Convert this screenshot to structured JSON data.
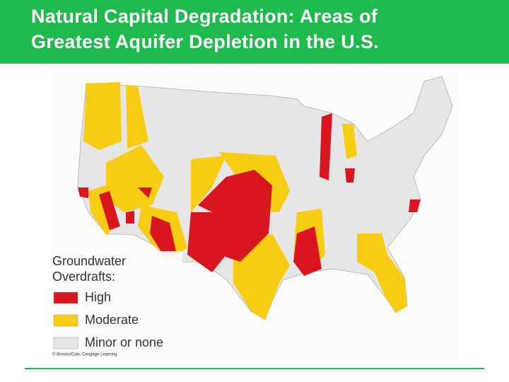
{
  "title_lines": [
    "Natural Capital Degradation: Areas of",
    "Greatest Aquifer Depletion in the U.S."
  ],
  "legend": {
    "title_lines": [
      "Groundwater",
      "Overdrafts:"
    ],
    "items": [
      {
        "label": "High",
        "color": "#d9151f"
      },
      {
        "label": "Moderate",
        "color": "#f7cd14"
      },
      {
        "label": "Minor or none",
        "color": "#e6e6e6"
      }
    ]
  },
  "credit": "© Brooks/Cole, Cengage Learning"
}
